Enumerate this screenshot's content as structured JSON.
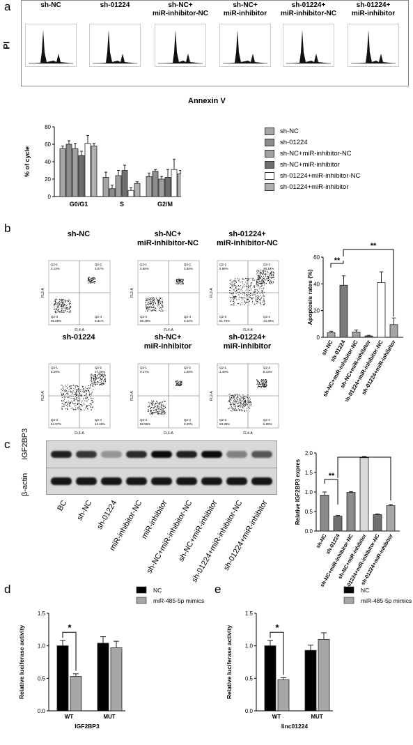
{
  "panel_letters": [
    "a",
    "b",
    "c",
    "d",
    "e"
  ],
  "panel_a": {
    "hist_titles": [
      "sh-NC",
      "sh-01224",
      "sh-NC+\nmiR-inhibitor-NC",
      "sh-NC+\nmiR-inhibitor",
      "sh-01224+\nmiR-inhibitor-NC",
      "sh-01224+\nmiR-inhibitor"
    ],
    "y_axis_label": "PI",
    "x_axis_label": "Annexin V"
  },
  "panel_b": {
    "scatter_titles_top": [
      "sh-NC",
      "sh-NC+\nmiR-inhibitor-NC",
      "sh-01224+\nmiR-inhibitor-NC"
    ],
    "scatter_titles_bottom": [
      "sh-01224",
      "sh-NC+\nmiR-inhibitor",
      "sh-01224+\nmiR-inhibitor"
    ],
    "quadrant_values": [
      [
        "Q2-1\n0.13%",
        "Q2-2\n3.87%",
        "Q2-3\n95.68%",
        "Q2-4\n0.31%"
      ],
      [
        "Q2-1\n0.66%",
        "Q2-2\n3.65%",
        "Q2-3\n95.28%",
        "Q2-4\n0.42%"
      ],
      [
        "Q2-1\n5.66%",
        "Q2-2\n29.19%",
        "Q2-3\n51.76%",
        "Q2-4\n13.39%"
      ],
      [
        "Q2-1\n5.29%",
        "Q2-2\n27.26%",
        "Q2-3\n54.97%",
        "Q2-4\n12.48%"
      ],
      [
        "Q2-1\n0.17%",
        "Q2-2\n1.05%",
        "Q2-3\n98.55%",
        "Q2-4\n0.23%"
      ],
      [
        "Q2-1\n1.49%",
        "Q2-2\n8.13%",
        "Q2-3\n83.39%",
        "Q2-4\n6.98%"
      ]
    ],
    "axis_x": "FL4-A",
    "axis_y": "FL2-A"
  },
  "panel_c": {
    "blot_labels": [
      "IGF2BP3",
      "β-actin"
    ],
    "lane_labels": [
      "BC",
      "sh-NC",
      "sh-01224",
      "miR-inhibitor-NC",
      "miR-inhibitor",
      "sh-NC+miR-inhibitor-NC",
      "sh-NC+miR-inhibitor",
      "sh-01224+miR-inhibitor-NC",
      "sh-01224+miR-inhibitor"
    ]
  },
  "significance": {
    "two": "**",
    "one": "*"
  },
  "chart_data": [
    {
      "id": "cell-cycle",
      "type": "bar",
      "categories": [
        "G0/G1",
        "S",
        "G2/M"
      ],
      "ylabel": "% of cycle",
      "ylim": [
        0,
        80
      ],
      "yticks": [
        0,
        20,
        40,
        60,
        80
      ],
      "series": [
        {
          "name": "sh-NC",
          "values": [
            55,
            22,
            23
          ],
          "errors": [
            3,
            6,
            4
          ],
          "color": "#a6a6a6"
        },
        {
          "name": "sh-01224",
          "values": [
            60,
            9,
            29
          ],
          "errors": [
            4,
            4,
            2
          ],
          "color": "#8c8c8c"
        },
        {
          "name": "sh-NC+miR-inhibitor-NC",
          "values": [
            55,
            24,
            20
          ],
          "errors": [
            6,
            6,
            3
          ],
          "color": "#a0a0a0"
        },
        {
          "name": "sh-NC+miR-inhibitor",
          "values": [
            47,
            30,
            22
          ],
          "errors": [
            5,
            6,
            9
          ],
          "color": "#6f6f6f"
        },
        {
          "name": "sh-01224+miR-inhibitor-NC",
          "values": [
            61,
            7,
            31
          ],
          "errors": [
            9,
            3,
            12
          ],
          "color": "#ffffff"
        },
        {
          "name": "sh-01224+miR-inhibitor",
          "values": [
            58,
            15,
            26
          ],
          "errors": [
            3,
            2,
            4
          ],
          "color": "#b0b0b0"
        }
      ]
    },
    {
      "id": "apoptosis",
      "type": "bar",
      "ylabel": "Apoptosis rates (%)",
      "ylim": [
        0,
        60
      ],
      "yticks": [
        0,
        20,
        40,
        60
      ],
      "categories": [
        "sh-NC",
        "sh-01224",
        "sh-NC+miR-inhibitor-NC",
        "sh-NC+miR-inhibitor",
        "sh-01224+miR-inhibitor-NC",
        "sh-01224+miR-inhibitor"
      ],
      "values": [
        3.5,
        39,
        4,
        1,
        41,
        9.5
      ],
      "errors": [
        1,
        7,
        1.5,
        0.5,
        8,
        5
      ],
      "colors": [
        "#a6a6a6",
        "#7a7a7a",
        "#a0a0a0",
        "#555555",
        "#ffffff",
        "#a6a6a6"
      ]
    },
    {
      "id": "igf2bp3",
      "type": "bar",
      "ylabel": "Relative IGF2BP3 expres",
      "ylim": [
        0,
        2.0
      ],
      "yticks": [
        0.0,
        0.5,
        1.0,
        1.5,
        2.0
      ],
      "categories": [
        "sh-NC",
        "sh-01224",
        "sh-NC+miR-inhibitor-NC",
        "sh-NC+miR-inhibitor",
        "sh-01224+miR-inhibitor-NC",
        "sh-01224+miR-inhibitor"
      ],
      "values": [
        0.92,
        0.38,
        0.99,
        1.88,
        0.42,
        0.65
      ],
      "errors": [
        0.08,
        0.02,
        0.02,
        0.03,
        0.02,
        0.03
      ],
      "colors": [
        "#8a8a8a",
        "#6f6f6f",
        "#8a8a8a",
        "#d9d9d9",
        "#6f6f6f",
        "#a6a6a6"
      ]
    },
    {
      "id": "luciferase-igf2bp3",
      "type": "bar",
      "xlabel": "IGF2BP3",
      "ylabel": "Relative  luciferase activity",
      "ylim": [
        0,
        1.5
      ],
      "yticks": [
        0.0,
        0.5,
        1.0,
        1.5
      ],
      "categories": [
        "WT",
        "MUT"
      ],
      "series": [
        {
          "name": "NC",
          "values": [
            1.0,
            1.04
          ],
          "errors": [
            0.08,
            0.1
          ],
          "color": "#000000"
        },
        {
          "name": "miR-485-5p mimics",
          "values": [
            0.53,
            0.97
          ],
          "errors": [
            0.04,
            0.1
          ],
          "color": "#a6a6a6"
        }
      ]
    },
    {
      "id": "luciferase-linc01224",
      "type": "bar",
      "xlabel": "linc01224",
      "ylabel": "Relative  luciferase activity",
      "ylim": [
        0,
        1.5
      ],
      "yticks": [
        0.0,
        0.5,
        1.0,
        1.5
      ],
      "categories": [
        "WT",
        "MUT"
      ],
      "series": [
        {
          "name": "NC",
          "values": [
            1.0,
            0.93
          ],
          "errors": [
            0.08,
            0.08
          ],
          "color": "#000000"
        },
        {
          "name": "miR-485-5p mimics",
          "values": [
            0.48,
            1.1
          ],
          "errors": [
            0.03,
            0.1
          ],
          "color": "#a6a6a6"
        }
      ]
    }
  ]
}
